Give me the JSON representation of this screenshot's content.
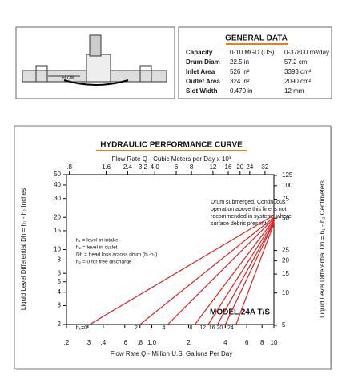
{
  "diagram": {
    "flow_label": "FLOW"
  },
  "general_data": {
    "title": "GENERAL DATA",
    "rows": [
      [
        "Capacity",
        "0-10 MGD (US)",
        "0-37800 m³/day"
      ],
      [
        "Drum Diam",
        "22.5 in",
        "57.2 cm"
      ],
      [
        "Inlet Area",
        "526 in²",
        "3393 cm²"
      ],
      [
        "Outlet Area",
        "324 in²",
        "2090 cm²"
      ],
      [
        "Slot Width",
        "0.470 in",
        "12 mm"
      ]
    ]
  },
  "chart_data": {
    "type": "line",
    "title": "HYDRAULIC PERFORMANCE CURVE",
    "x_label": "Flow Rate Q - Million U.S. Gallons Per Day",
    "x2_label": "Flow Rate Q - Cubic Meters per Day x 10³",
    "y_label": "Liquid Level Differential  Dh = h₁ - h₂ Inches",
    "y2_label": "Liquid Level Differential  Dh = h₁ - h₂ Centimeters",
    "log_x": true,
    "log_y": true,
    "grid": false,
    "xlim": [
      0.2,
      10
    ],
    "xticks": [
      {
        "value": 0.2,
        "label": ".2"
      },
      {
        "value": 0.3,
        "label": ".3"
      },
      {
        "value": 0.4,
        "label": ".4"
      },
      {
        "value": 0.6,
        "label": ".6"
      },
      {
        "value": 0.8,
        "label": ".8"
      },
      {
        "value": 1.0,
        "label": "1.0"
      },
      2,
      4,
      6,
      8,
      10
    ],
    "x2lim": [
      0.757,
      37.85
    ],
    "x2ticks": [
      {
        "value": 0.8,
        "label": ".8"
      },
      1.6,
      2.4,
      3.2,
      {
        "value": 4.0,
        "label": "4.0"
      },
      6,
      8,
      12,
      16,
      20,
      24,
      32
    ],
    "ylim": [
      2,
      50
    ],
    "yticks": [
      2,
      3,
      4,
      5,
      6,
      8,
      10,
      15,
      20,
      30,
      40,
      50
    ],
    "y2lim": [
      5.08,
      127
    ],
    "y2ticks": [
      5,
      10,
      15,
      20,
      25,
      50,
      75,
      100,
      125
    ],
    "annotation": [
      "Drum submerged.  Continuous",
      "operation above this line is not",
      "recommended in systems where",
      "surface debris present."
    ],
    "notes": [
      "h₁ = level in intake",
      "h₂ = level in outlet",
      "Dh = head loss across drum (h₁-h₂)",
      "h₂ = 0 for free discharge"
    ],
    "model": "MODEL 24A T/S",
    "series": [
      {
        "name": "h₁=0",
        "color": "#e02020",
        "x": [
          0.31,
          10
        ],
        "values": [
          2,
          21
        ]
      },
      {
        "name": "2",
        "color": "#e02020",
        "x": [
          0.8,
          10
        ],
        "values": [
          2,
          20
        ]
      },
      {
        "name": "4",
        "color": "#e02020",
        "x": [
          1.35,
          10
        ],
        "values": [
          2,
          19.5
        ]
      },
      {
        "name": "8",
        "color": "#e02020",
        "x": [
          2.25,
          10
        ],
        "values": [
          2,
          19
        ]
      },
      {
        "name": "12",
        "color": "#e02020",
        "x": [
          2.9,
          10
        ],
        "values": [
          2,
          18.5
        ]
      },
      {
        "name": "16",
        "color": "#e02020",
        "x": [
          3.45,
          10
        ],
        "values": [
          2,
          18
        ]
      },
      {
        "name": "20",
        "color": "#e02020",
        "x": [
          4.0,
          10
        ],
        "values": [
          2,
          18
        ]
      },
      {
        "name": "24",
        "color": "#e02020",
        "x": [
          4.9,
          10
        ],
        "values": [
          2,
          17.5
        ]
      }
    ]
  }
}
